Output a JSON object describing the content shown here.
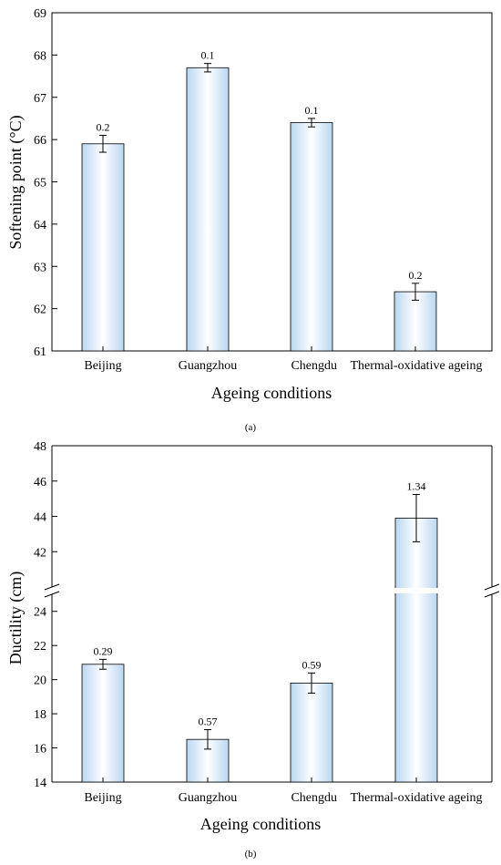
{
  "chart_data": [
    {
      "type": "bar",
      "panel_label": "(a)",
      "categories": [
        "Beijing",
        "Guangzhou",
        "Chengdu",
        "Thermal-oxidative ageing"
      ],
      "values": [
        65.9,
        67.7,
        66.4,
        62.4
      ],
      "errors": [
        0.2,
        0.1,
        0.1,
        0.2
      ],
      "data_labels": [
        "0.2",
        "0.1",
        "0.1",
        "0.2"
      ],
      "xlabel": "Ageing conditions",
      "ylabel": "Softening point (°C)",
      "ylim": [
        61,
        69
      ],
      "yticks": [
        61,
        62,
        63,
        64,
        65,
        66,
        67,
        68,
        69
      ],
      "bar_fill": "gradient-white-lightblue",
      "grid": false
    },
    {
      "type": "bar",
      "panel_label": "(b)",
      "categories": [
        "Beijing",
        "Guangzhou",
        "Chengdu",
        "Thermal-oxidative ageing"
      ],
      "values": [
        20.9,
        16.5,
        19.8,
        43.9
      ],
      "errors": [
        0.29,
        0.57,
        0.59,
        1.34
      ],
      "data_labels": [
        "0.29",
        "0.57",
        "0.59",
        "1.34"
      ],
      "xlabel": "Ageing conditions",
      "ylabel": "Ductility (cm)",
      "axis_break": {
        "lower_range": [
          14,
          25
        ],
        "upper_range": [
          40,
          48
        ]
      },
      "yticks_lower": [
        14,
        16,
        18,
        20,
        22,
        24
      ],
      "yticks_upper": [
        42,
        44,
        46,
        48
      ],
      "bar_fill": "gradient-white-lightblue",
      "grid": false
    }
  ]
}
